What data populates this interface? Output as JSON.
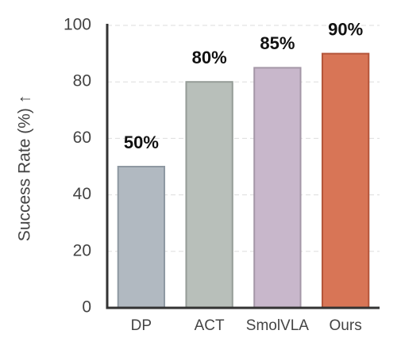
{
  "chart_data": {
    "type": "bar",
    "y_label": "Success Rate (%) ↑",
    "categories": [
      "DP",
      "ACT",
      "SmolVLA",
      "Ours"
    ],
    "values": [
      50,
      80,
      85,
      90
    ],
    "value_labels": [
      "50%",
      "80%",
      "85%",
      "90%"
    ],
    "colors": [
      "#b1b9c1",
      "#b8bfba",
      "#c8b7cb",
      "#d87556"
    ],
    "edge_colors": [
      "#8e98a2",
      "#959c97",
      "#a497a7",
      "#b4553a"
    ],
    "ylim": [
      0,
      100
    ],
    "yticks": [
      0,
      20,
      40,
      60,
      80,
      100
    ],
    "grid": true
  }
}
